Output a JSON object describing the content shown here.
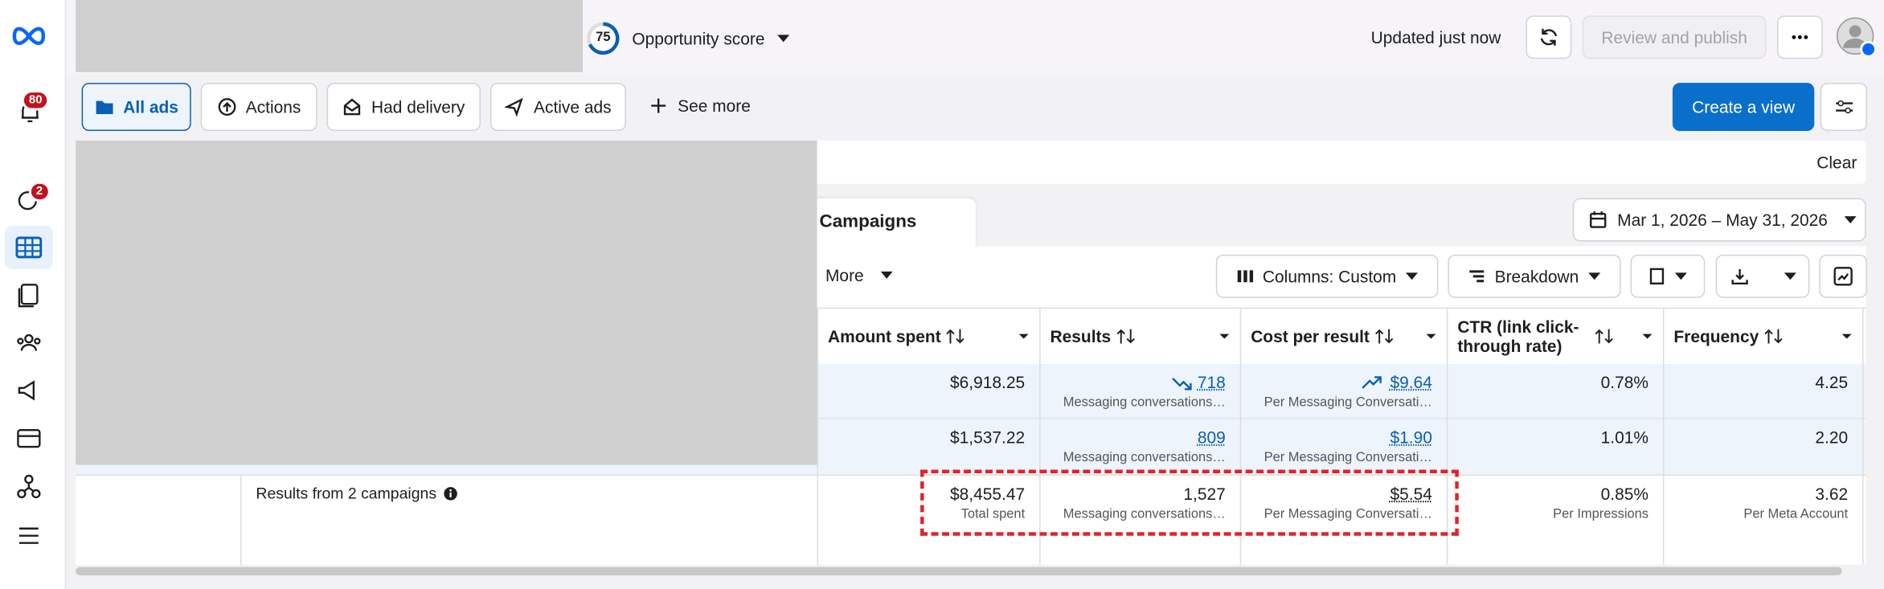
{
  "top_bar": {
    "opportunity_score": 75,
    "opportunity_label": "Opportunity score",
    "updated": "Updated just now",
    "review_button": "Review and publish"
  },
  "sidebar": {
    "notifications_badge": 80,
    "second_badge": 2
  },
  "filters": [
    "All ads",
    "Actions",
    "Had delivery",
    "Active ads",
    "See more"
  ],
  "create_view": "Create a view",
  "clear": "Clear",
  "tab": "Campaigns",
  "date_range": "Mar 1, 2026 – May 31, 2026",
  "toolbar": {
    "more": "More",
    "columns": "Columns: Custom",
    "breakdown": "Breakdown"
  },
  "table": {
    "columns": [
      "Amount spent",
      "Results",
      "Cost per result",
      "CTR (link click-through rate)",
      "Frequency"
    ],
    "rows": [
      {
        "amount": "$6,918.25",
        "results": "718",
        "results_sub": "Messaging conversations…",
        "cost": "$9.64",
        "cost_sub": "Per Messaging Conversati…",
        "ctr": "0.78%",
        "frequency": "4.25"
      },
      {
        "amount": "$1,537.22",
        "results": "809",
        "results_sub": "Messaging conversations…",
        "cost": "$1.90",
        "cost_sub": "Per Messaging Conversati…",
        "ctr": "1.01%",
        "frequency": "2.20"
      }
    ],
    "summary": {
      "label": "Results from 2 campaigns",
      "amount": "$8,455.47",
      "amount_sub": "Total spent",
      "results": "1,527",
      "results_sub": "Messaging conversations…",
      "cost": "$5.54",
      "cost_sub": "Per Messaging Conversati…",
      "ctr": "0.85%",
      "ctr_sub": "Per Impressions",
      "frequency": "3.62",
      "frequency_sub": "Per Meta Account"
    }
  }
}
